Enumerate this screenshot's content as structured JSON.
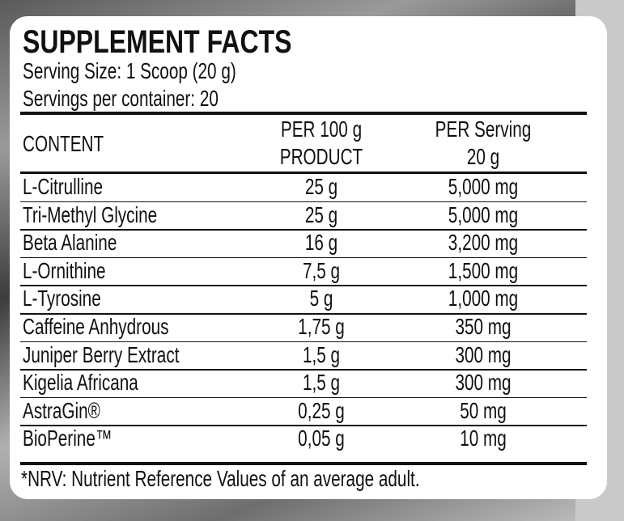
{
  "title": "SUPPLEMENT FACTS",
  "serving_size": "Serving Size: 1 Scoop (20 g)",
  "servings_per_container": "Servings per container: 20",
  "table": {
    "headers": {
      "content": "CONTENT",
      "per100_line1": "PER 100 g",
      "per100_line2": "PRODUCT",
      "perserving_line1": "PER Serving",
      "perserving_line2": "20 g"
    },
    "rows": [
      {
        "name": "L-Citrulline",
        "per100": "25 g",
        "perserving": "5,000 mg"
      },
      {
        "name": "Tri-Methyl Glycine",
        "per100": "25 g",
        "perserving": "5,000 mg"
      },
      {
        "name": "Beta Alanine",
        "per100": "16 g",
        "perserving": "3,200 mg"
      },
      {
        "name": "L-Ornithine",
        "per100": "7,5 g",
        "perserving": "1,500 mg"
      },
      {
        "name": "L-Tyrosine",
        "per100": "5 g",
        "perserving": "1,000 mg"
      },
      {
        "name": "Caffeine Anhydrous",
        "per100": "1,75 g",
        "perserving": "350 mg"
      },
      {
        "name": "Juniper Berry Extract",
        "per100": "1,5 g",
        "perserving": "300 mg"
      },
      {
        "name": "Kigelia Africana",
        "per100": "1,5 g",
        "perserving": "300 mg"
      },
      {
        "name": "AstraGin®",
        "per100": "0,25 g",
        "perserving": "50 mg"
      },
      {
        "name": "BioPerine™",
        "per100": "0,05 g",
        "perserving": "10 mg"
      }
    ]
  },
  "footnote": "*NRV: Nutrient Reference Values of an average adult."
}
